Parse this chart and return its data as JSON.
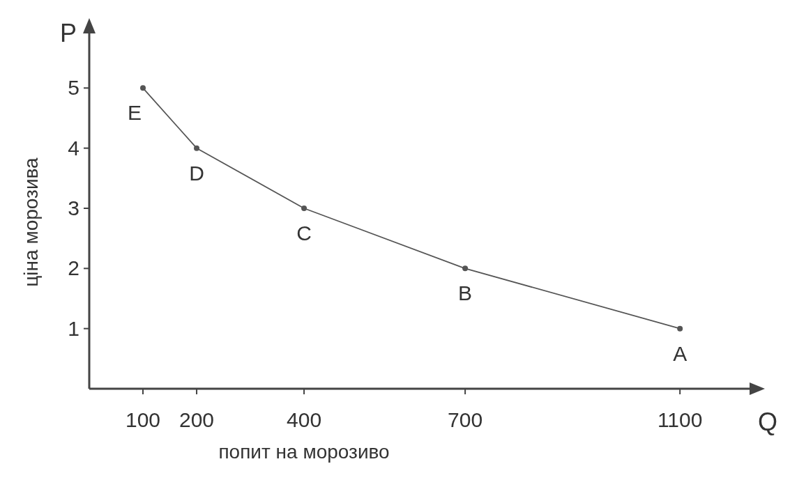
{
  "chart_data": {
    "type": "line",
    "xlabel": "попит на морозиво",
    "ylabel": "ціна морозива",
    "x": [
      100,
      200,
      400,
      700,
      1100
    ],
    "series": [
      {
        "color": "#555555",
        "values": [
          5,
          4,
          3,
          2,
          1
        ]
      }
    ],
    "xlim": [
      0,
      1240
    ],
    "xticks": [
      100,
      200,
      400,
      700,
      1100
    ],
    "ylim": [
      0,
      6
    ],
    "yticks": [
      1,
      2,
      3,
      4,
      5
    ],
    "marker": "circle",
    "line_style": "solid",
    "grid": false,
    "annotations": [
      "P",
      "Q",
      {
        "text": "E",
        "x": 100,
        "y": 5
      },
      {
        "text": "D",
        "x": 200,
        "y": 4
      },
      {
        "text": "C",
        "x": 400,
        "y": 3
      },
      {
        "text": "B",
        "x": 700,
        "y": 2
      },
      {
        "text": "A",
        "x": 1100,
        "y": 1
      }
    ]
  }
}
